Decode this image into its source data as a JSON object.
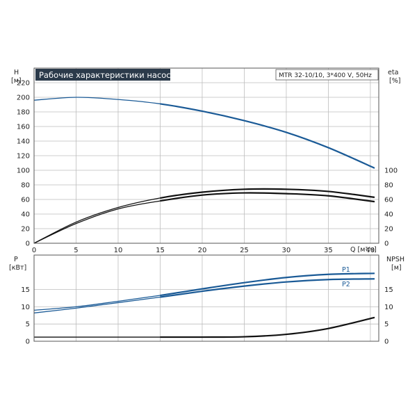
{
  "title": "Рабочие характеристики насоса",
  "pump_label": "MTR 32-10/10, 3*400 V, 50Hz",
  "colors": {
    "blue": "#1a5a96",
    "black": "#111111",
    "title_bg": "#2b3a4a",
    "title_fg": "#ffffff",
    "grid": "#bdbdbd"
  },
  "chart_data": [
    {
      "type": "line",
      "name": "head-efficiency",
      "xlim": [
        0,
        41
      ],
      "x_ticks": [
        0,
        5,
        10,
        15,
        20,
        25,
        30,
        35,
        40
      ],
      "x_label": "Q [м³/ч]",
      "left_axis": {
        "label": "H",
        "unit": "[м]",
        "ylim": [
          0,
          240
        ],
        "ticks": [
          0,
          20,
          40,
          60,
          80,
          100,
          120,
          140,
          160,
          180,
          200,
          220
        ]
      },
      "right_axis": {
        "label": "eta",
        "unit": "[%]",
        "ylim": [
          0,
          240
        ],
        "ticks": [
          0,
          20,
          40,
          60,
          80,
          100
        ]
      },
      "grid": true,
      "series": [
        {
          "color": "blue",
          "axis": "left",
          "x": [
            0,
            5,
            10,
            15,
            20,
            25,
            30,
            35,
            40.5
          ],
          "y": [
            196,
            200,
            197,
            191,
            181,
            168,
            152,
            131,
            103
          ]
        },
        {
          "color": "black",
          "axis": "right",
          "x": [
            0,
            5,
            10,
            15,
            20,
            25,
            30,
            35,
            40.5
          ],
          "y": [
            0,
            29,
            49,
            62,
            70,
            74,
            74,
            71,
            63
          ]
        },
        {
          "color": "black",
          "axis": "right",
          "x": [
            0,
            5,
            10,
            15,
            20,
            25,
            30,
            35,
            40.5
          ],
          "y": [
            0,
            27,
            47,
            58,
            66,
            69,
            68,
            65,
            57
          ]
        }
      ]
    },
    {
      "type": "line",
      "name": "power-npsh",
      "xlim": [
        0,
        41
      ],
      "left_axis": {
        "label": "P",
        "unit": "[кВт]",
        "ylim": [
          0,
          25
        ],
        "ticks": [
          0,
          5,
          10,
          15
        ]
      },
      "right_axis": {
        "label": "NPSH",
        "unit": "[м]",
        "ylim": [
          0,
          25
        ],
        "ticks": [
          0,
          5,
          10,
          15
        ]
      },
      "grid": true,
      "series": [
        {
          "name": "P1",
          "color": "blue",
          "axis": "left",
          "x": [
            0,
            5,
            10,
            15,
            20,
            25,
            30,
            35,
            40.5
          ],
          "y": [
            9,
            10,
            11.6,
            13.3,
            15.2,
            17,
            18.5,
            19.4,
            19.7
          ]
        },
        {
          "name": "P2",
          "color": "blue",
          "axis": "left",
          "x": [
            0,
            5,
            10,
            15,
            20,
            25,
            30,
            35,
            40.5
          ],
          "y": [
            8.2,
            9.6,
            11.2,
            12.8,
            14.5,
            16,
            17.2,
            17.9,
            18.1
          ]
        },
        {
          "color": "black",
          "axis": "right",
          "x": [
            0,
            15,
            20,
            25,
            30,
            35,
            40.5
          ],
          "y": [
            1.2,
            1.2,
            1.2,
            1.3,
            2,
            3.7,
            6.9
          ]
        }
      ]
    }
  ]
}
